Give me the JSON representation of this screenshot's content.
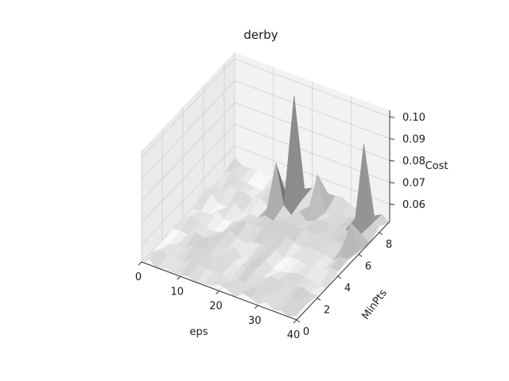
{
  "chart_data": {
    "type": "surface3d",
    "title": "derby",
    "xlabel": "eps",
    "ylabel": "MinPts",
    "zlabel": "Cost",
    "xlim": [
      0,
      40
    ],
    "ylim": [
      0,
      9
    ],
    "zlim": [
      0.052,
      0.103
    ],
    "xticks": [
      "0",
      "10",
      "20",
      "30",
      "40"
    ],
    "yticks": [
      "0",
      "2",
      "4",
      "6",
      "8"
    ],
    "zticks": [
      "0.06",
      "0.07",
      "0.08",
      "0.09",
      "0.10"
    ],
    "baseline_cost": 0.053,
    "peaks": [
      {
        "eps": 19,
        "minpts": 8,
        "cost": 0.1
      },
      {
        "eps": 37,
        "minpts": 8,
        "cost": 0.09
      },
      {
        "eps": 16,
        "minpts": 7,
        "cost": 0.073
      },
      {
        "eps": 24,
        "minpts": 8,
        "cost": 0.068
      },
      {
        "eps": 38,
        "minpts": 6,
        "cost": 0.065
      }
    ],
    "colormap": "greys",
    "grid": true
  }
}
